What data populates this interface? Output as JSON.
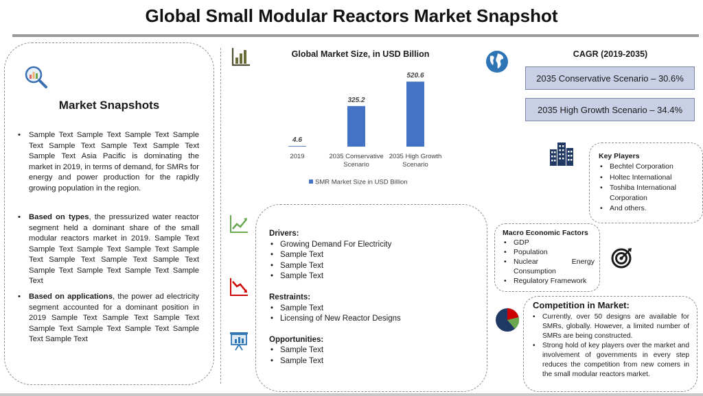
{
  "title": "Global Small Modular Reactors Market Snapshot",
  "snapshots": {
    "heading": "Market Snapshots",
    "p1": "Sample Text Sample Text Sample Text Sample Text Sample Text Sample Text Sample Text Sample Text Asia Pacific is dominating the market in 2019, in terms of demand, for SMRs for energy and power production for the rapidly growing population in the region.",
    "p2_bold": "Based on types",
    "p2_rest": ", the pressurized water reactor segment held a dominant share of the small modular reactors market in 2019. Sample Text Sample Text Sample Text Sample Text Sample Text Sample Text Sample Text Sample Text Sample Text Sample Text Sample Text Sample Text",
    "p3_bold": "Based on applications",
    "p3_rest": ", the power ad electricity segment accounted for a dominant position in 2019 Sample Text Sample Text Sample Text Sample Text Sample Text Sample Text Sample Text Sample Text"
  },
  "chart_data": {
    "type": "bar",
    "title": "Global Market Size, in USD Billion",
    "categories": [
      "2019",
      "2035 Conservative Scenario",
      "2035 High Growth Scenario"
    ],
    "category_lines": [
      [
        "2019"
      ],
      [
        "2035 Conservative",
        "Scenario"
      ],
      [
        "2035 High Growth",
        "Scenario"
      ]
    ],
    "series": [
      {
        "name": "SMR Market Size in USD Billion",
        "values": [
          4.6,
          325.2,
          520.6
        ],
        "labels": [
          "4.6",
          "325.2",
          "520.6"
        ]
      }
    ],
    "ylim": [
      0,
      560
    ],
    "legend": "bottom",
    "bar_color": "#4472c4"
  },
  "cagr": {
    "title": "CAGR (2019-2035)",
    "conservative": "2035 Conservative Scenario – 30.6%",
    "high": "2035 High Growth Scenario – 34.4%"
  },
  "drivers": {
    "drivers_head": "Drivers:",
    "drivers": [
      "Growing Demand For Electricity",
      "Sample Text",
      "Sample Text",
      "Sample Text"
    ],
    "restraints_head": "Restraints:",
    "restraints": [
      "Sample Text",
      "Licensing of New Reactor Designs"
    ],
    "opportunities_head": "Opportunities:",
    "opportunities": [
      "Sample Text",
      "Sample Text"
    ]
  },
  "players": {
    "head": "Key Players",
    "items": [
      "Bechtel Corporation",
      "Holtec International",
      "Toshiba International Corporation",
      "And others."
    ]
  },
  "macro": {
    "head": "Macro Economic Factors",
    "items": [
      "GDP",
      "Population",
      "Nuclear Energy Consumption",
      "Regulatory Framework"
    ]
  },
  "competition": {
    "head": "Competition in Market:",
    "items": [
      "Currently, over 50 designs are available for SMRs, globally. However, a limited number of SMRs are being constructed.",
      "Strong hold of key players over the market and involvement of governments in every step reduces the competition from new comers in the small modular reactors market."
    ]
  },
  "icons": {
    "snapshot": "magnifier-chart-icon",
    "bar": "bar-chart-icon",
    "globe": "globe-icon",
    "building": "building-icon",
    "up": "trend-up-icon",
    "down": "trend-down-icon",
    "presentation": "presentation-icon",
    "target": "target-icon",
    "pie": "pie-chart-icon"
  },
  "colors": {
    "accent": "#4472c4",
    "green": "#6aa84f",
    "red": "#cc0000",
    "navy": "#1f3864",
    "cagr_fill": "#c9d0e6"
  }
}
